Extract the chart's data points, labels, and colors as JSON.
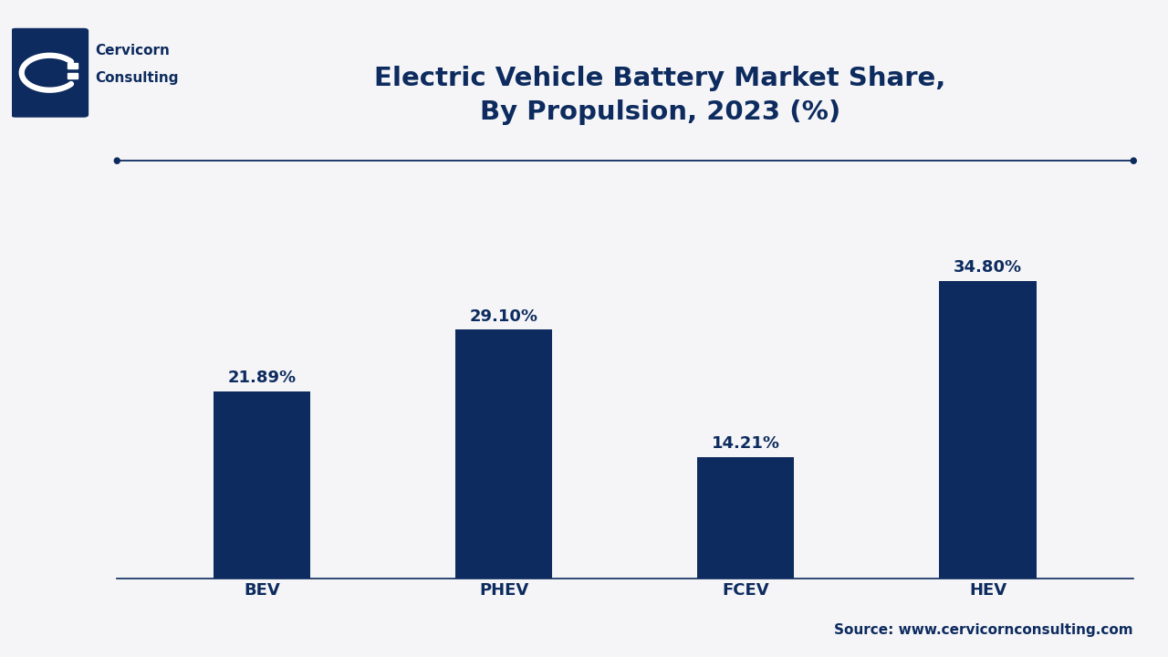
{
  "title_line1": "Electric Vehicle Battery Market Share,",
  "title_line2": "By Propulsion, 2023 (%)",
  "categories": [
    "BEV",
    "PHEV",
    "FCEV",
    "HEV"
  ],
  "values": [
    21.89,
    29.1,
    14.21,
    34.8
  ],
  "labels": [
    "21.89%",
    "29.10%",
    "14.21%",
    "34.80%"
  ],
  "bar_color": "#0d2b5e",
  "background_color": "#f5f5f8",
  "grid_color": "#d0d0d8",
  "title_color": "#0d2b5e",
  "label_color": "#0d2b5e",
  "axis_color": "#0d2b5e",
  "tick_color": "#0d2b5e",
  "source_text": "Source: www.cervicornconsulting.com",
  "source_color": "#0d2b5e",
  "separator_line_color": "#0d2b5e",
  "ylim": [
    0,
    40
  ],
  "title_fontsize": 21,
  "label_fontsize": 13,
  "tick_fontsize": 13,
  "source_fontsize": 11,
  "logo_company_line1": "Cervicorn",
  "logo_company_line2": "Consulting"
}
